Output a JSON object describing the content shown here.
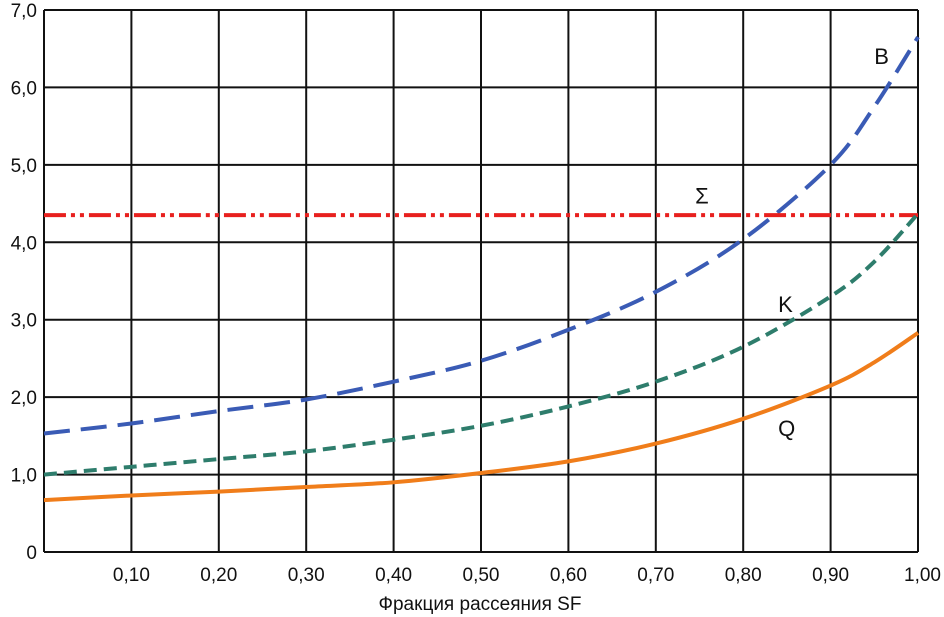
{
  "chart_data": {
    "type": "line",
    "title": "",
    "xlabel": "Фракция рассеяния SF",
    "ylabel": "",
    "xlim": [
      0,
      1.0
    ],
    "ylim": [
      0,
      7.0
    ],
    "grid": true,
    "x_ticks": [
      0.1,
      0.2,
      0.3,
      0.4,
      0.5,
      0.6,
      0.7,
      0.8,
      0.9,
      1.0
    ],
    "x_tick_labels": [
      "0,10",
      "0,20",
      "0,30",
      "0,40",
      "0,50",
      "0,60",
      "0,70",
      "0,80",
      "0,90",
      "1,00"
    ],
    "y_ticks": [
      0,
      1,
      2,
      3,
      4,
      5,
      6,
      7
    ],
    "y_tick_labels": [
      "0",
      "1,0",
      "2,0",
      "3,0",
      "4,0",
      "5,0",
      "6,0",
      "7,0"
    ],
    "series": [
      {
        "name": "B",
        "color": "#3a5bb5",
        "style": "long-dash",
        "label_at": [
          0.95,
          6.3
        ],
        "x": [
          0,
          0.1,
          0.2,
          0.3,
          0.4,
          0.5,
          0.6,
          0.7,
          0.8,
          0.9,
          0.95,
          1.0
        ],
        "y": [
          1.53,
          1.66,
          1.82,
          1.97,
          2.2,
          2.47,
          2.87,
          3.36,
          4.04,
          5.0,
          5.75,
          6.65
        ]
      },
      {
        "name": "Σ",
        "color": "#e8201e",
        "style": "dash-dot-dot",
        "label_at": [
          0.745,
          4.5
        ],
        "x": [
          0,
          1.0
        ],
        "y": [
          4.35,
          4.35
        ]
      },
      {
        "name": "K",
        "color": "#2e7d6c",
        "style": "short-dash",
        "label_at": [
          0.84,
          3.1
        ],
        "x": [
          0,
          0.1,
          0.2,
          0.3,
          0.4,
          0.5,
          0.6,
          0.7,
          0.8,
          0.9,
          0.95,
          1.0
        ],
        "y": [
          1.0,
          1.1,
          1.2,
          1.3,
          1.45,
          1.63,
          1.88,
          2.2,
          2.65,
          3.3,
          3.75,
          4.37
        ]
      },
      {
        "name": "Q",
        "color": "#f07d1a",
        "style": "solid",
        "label_at": [
          0.84,
          1.5
        ],
        "x": [
          0,
          0.1,
          0.2,
          0.3,
          0.4,
          0.5,
          0.6,
          0.7,
          0.8,
          0.9,
          0.95,
          1.0
        ],
        "y": [
          0.67,
          0.73,
          0.78,
          0.84,
          0.9,
          1.02,
          1.17,
          1.4,
          1.72,
          2.15,
          2.45,
          2.83
        ]
      }
    ]
  }
}
